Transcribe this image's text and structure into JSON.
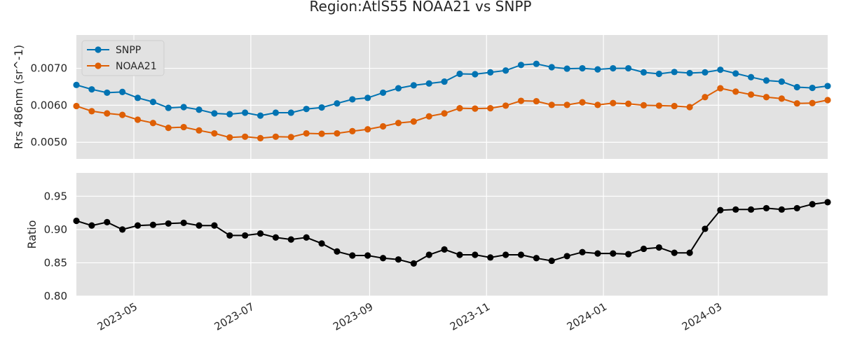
{
  "figure_title": "Region:AtlS55 NOAA21 vs SNPP",
  "colors": {
    "snpp": "#0173b2",
    "noaa21": "#de5f05",
    "ratio": "#000000",
    "panel_bg": "#e2e2e2",
    "grid": "#ffffff"
  },
  "chart_data": [
    {
      "type": "line",
      "title": "",
      "xlabel": "",
      "ylabel": "Rrs 486nm (sr^-1)",
      "ylim": [
        0.00455,
        0.0079
      ],
      "xlim": [
        "2023-04-01",
        "2024-04-27"
      ],
      "yticks": [
        "0.0050",
        "0.0060",
        "0.0070"
      ],
      "ytick_values": [
        0.005,
        0.006,
        0.007
      ],
      "grid": true,
      "legend_position": "upper-left",
      "x": [
        "2023-04-01",
        "2023-04-09",
        "2023-04-17",
        "2023-04-25",
        "2023-05-03",
        "2023-05-11",
        "2023-05-19",
        "2023-05-27",
        "2023-06-04",
        "2023-06-12",
        "2023-06-20",
        "2023-06-28",
        "2023-07-06",
        "2023-07-14",
        "2023-07-22",
        "2023-07-30",
        "2023-08-07",
        "2023-08-15",
        "2023-08-23",
        "2023-08-31",
        "2023-09-08",
        "2023-09-16",
        "2023-09-24",
        "2023-10-02",
        "2023-10-10",
        "2023-10-18",
        "2023-10-26",
        "2023-11-03",
        "2023-11-11",
        "2023-11-19",
        "2023-11-27",
        "2023-12-05",
        "2023-12-13",
        "2023-12-21",
        "2023-12-29",
        "2024-01-06",
        "2024-01-14",
        "2024-01-22",
        "2024-01-30",
        "2024-02-07",
        "2024-02-15",
        "2024-02-23",
        "2024-03-02",
        "2024-03-10",
        "2024-03-18",
        "2024-03-26",
        "2024-04-03",
        "2024-04-11",
        "2024-04-19",
        "2024-04-27"
      ],
      "series": [
        {
          "name": "SNPP",
          "color": "#0173b2",
          "values": [
            0.00655,
            0.00643,
            0.00634,
            0.00636,
            0.0062,
            0.00609,
            0.00593,
            0.00595,
            0.00588,
            0.00578,
            0.00576,
            0.0058,
            0.00572,
            0.0058,
            0.0058,
            0.0059,
            0.00594,
            0.00605,
            0.00616,
            0.0062,
            0.00634,
            0.00646,
            0.00654,
            0.00659,
            0.00664,
            0.00685,
            0.00684,
            0.00689,
            0.00694,
            0.00709,
            0.00712,
            0.00703,
            0.00699,
            0.007,
            0.00697,
            0.007,
            0.007,
            0.00689,
            0.00685,
            0.0069,
            0.00687,
            0.00689,
            0.00696,
            0.00686,
            0.00676,
            0.00667,
            0.00664,
            0.00649,
            0.00647,
            0.00652
          ]
        },
        {
          "name": "NOAA21",
          "color": "#de5f05",
          "values": [
            0.00598,
            0.00584,
            0.00578,
            0.00574,
            0.00561,
            0.00552,
            0.00539,
            0.00541,
            0.00532,
            0.00524,
            0.00513,
            0.00515,
            0.00511,
            0.00515,
            0.00514,
            0.00524,
            0.00523,
            0.00524,
            0.0053,
            0.00535,
            0.00543,
            0.00552,
            0.00556,
            0.0057,
            0.00578,
            0.00592,
            0.00591,
            0.00592,
            0.00599,
            0.00612,
            0.00611,
            0.00601,
            0.00601,
            0.00608,
            0.00601,
            0.00606,
            0.00604,
            0.006,
            0.00599,
            0.00598,
            0.00595,
            0.00622,
            0.00646,
            0.00637,
            0.00629,
            0.00622,
            0.00618,
            0.00605,
            0.00606,
            0.00614
          ]
        }
      ]
    },
    {
      "type": "line",
      "title": "",
      "xlabel": "",
      "ylabel": "Ratio",
      "ylim": [
        0.8,
        0.985
      ],
      "xlim": [
        "2023-04-01",
        "2024-04-27"
      ],
      "yticks": [
        "0.80",
        "0.85",
        "0.90",
        "0.95"
      ],
      "ytick_values": [
        0.8,
        0.85,
        0.9,
        0.95
      ],
      "xticks": [
        "2023-05",
        "2023-07",
        "2023-09",
        "2023-11",
        "2024-01",
        "2024-03"
      ],
      "xtick_dates": [
        "2023-05-01",
        "2023-07-01",
        "2023-09-01",
        "2023-11-01",
        "2024-01-01",
        "2024-03-01"
      ],
      "grid": true,
      "x": [
        "2023-04-01",
        "2023-04-09",
        "2023-04-17",
        "2023-04-25",
        "2023-05-03",
        "2023-05-11",
        "2023-05-19",
        "2023-05-27",
        "2023-06-04",
        "2023-06-12",
        "2023-06-20",
        "2023-06-28",
        "2023-07-06",
        "2023-07-14",
        "2023-07-22",
        "2023-07-30",
        "2023-08-07",
        "2023-08-15",
        "2023-08-23",
        "2023-08-31",
        "2023-09-08",
        "2023-09-16",
        "2023-09-24",
        "2023-10-02",
        "2023-10-10",
        "2023-10-18",
        "2023-10-26",
        "2023-11-03",
        "2023-11-11",
        "2023-11-19",
        "2023-11-27",
        "2023-12-05",
        "2023-12-13",
        "2023-12-21",
        "2023-12-29",
        "2024-01-06",
        "2024-01-14",
        "2024-01-22",
        "2024-01-30",
        "2024-02-07",
        "2024-02-15",
        "2024-02-23",
        "2024-03-02",
        "2024-03-10",
        "2024-03-18",
        "2024-03-26",
        "2024-04-03",
        "2024-04-11",
        "2024-04-19",
        "2024-04-27"
      ],
      "series": [
        {
          "color": "#000000",
          "values": [
            0.913,
            0.906,
            0.911,
            0.9,
            0.906,
            0.907,
            0.909,
            0.91,
            0.906,
            0.906,
            0.891,
            0.891,
            0.894,
            0.888,
            0.885,
            0.888,
            0.879,
            0.867,
            0.861,
            0.861,
            0.857,
            0.855,
            0.849,
            0.862,
            0.87,
            0.862,
            0.862,
            0.858,
            0.862,
            0.862,
            0.857,
            0.853,
            0.86,
            0.866,
            0.864,
            0.864,
            0.863,
            0.871,
            0.873,
            0.865,
            0.865,
            0.901,
            0.929,
            0.93,
            0.93,
            0.932,
            0.93,
            0.932,
            0.938,
            0.941
          ]
        }
      ]
    }
  ]
}
